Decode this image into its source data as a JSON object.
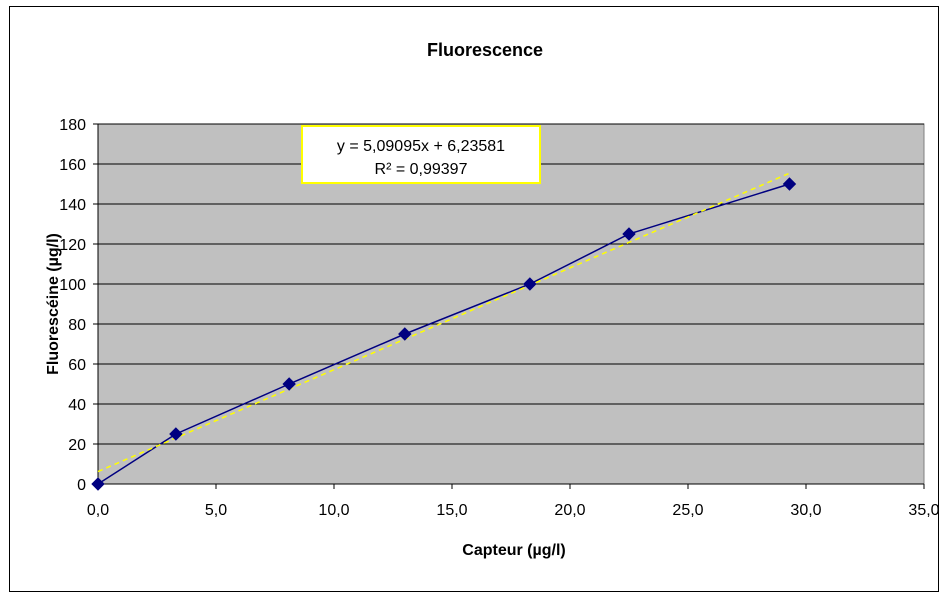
{
  "chart_data": {
    "type": "scatter",
    "title": "Fluorescence",
    "xlabel": "Capteur (µg/l)",
    "ylabel": "Fluorescéine (µg/l)",
    "xlim": [
      0,
      35
    ],
    "ylim": [
      0,
      180
    ],
    "x_ticks": [
      "0,0",
      "5,0",
      "10,0",
      "15,0",
      "20,0",
      "25,0",
      "30,0",
      "35,0"
    ],
    "y_ticks": [
      "0",
      "20",
      "40",
      "60",
      "80",
      "100",
      "120",
      "140",
      "160",
      "180"
    ],
    "grid": true,
    "plot_background": "#c0c0c0",
    "series": [
      {
        "color": "#000080",
        "marker": "diamond",
        "x": [
          0.0,
          3.3,
          8.1,
          13.0,
          18.3,
          22.5,
          29.3
        ],
        "y": [
          0,
          25,
          50,
          75,
          100,
          125,
          150
        ]
      }
    ],
    "trendline": {
      "type": "linear",
      "slope": 5.09095,
      "intercept": 6.23581,
      "color": "#ffff00",
      "style": "dashed",
      "equation_text": "y = 5,09095x + 6,23581",
      "r2_text": "R² = 0,99397"
    }
  }
}
